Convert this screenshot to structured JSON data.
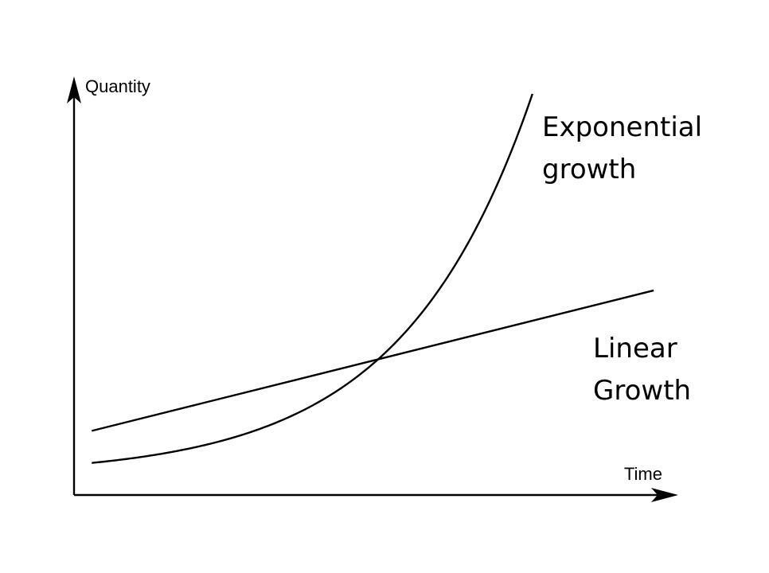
{
  "chart_data": {
    "type": "line",
    "title": "",
    "xlabel": "Time",
    "ylabel": "Quantity",
    "xlim": [
      0,
      10
    ],
    "ylim": [
      0,
      10
    ],
    "grid": false,
    "ticks": false,
    "series": [
      {
        "name": "Exponential growth",
        "label_lines": [
          "Exponential",
          "growth"
        ],
        "model": "exponential",
        "x": [
          0.3,
          1.5,
          3.0,
          4.5,
          5.5,
          6.5,
          7.3,
          7.75
        ],
        "y": [
          0.8,
          0.96,
          1.48,
          2.6,
          3.9,
          6.1,
          8.7,
          10.0
        ]
      },
      {
        "name": "Linear Growth",
        "label_lines": [
          "Linear",
          "Growth"
        ],
        "model": "linear",
        "x": [
          0.3,
          9.8
        ],
        "y": [
          1.6,
          5.1
        ]
      }
    ]
  }
}
